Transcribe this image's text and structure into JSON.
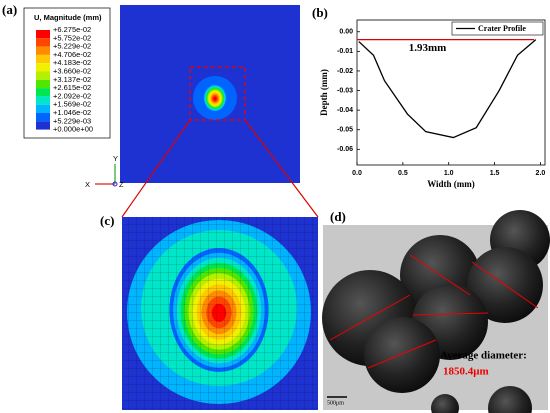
{
  "panels": {
    "a": {
      "label": "(a)",
      "legend_title": "U, Magnitude (mm)",
      "legend_values": [
        "+6.275e-02",
        "+5.752e-02",
        "+5.229e-02",
        "+4.706e-02",
        "+4.183e-02",
        "+3.660e-02",
        "+3.137e-02",
        "+2.615e-02",
        "+2.092e-02",
        "+1.569e-02",
        "+1.046e-02",
        "+5.229e-03",
        "+0.000e+00"
      ],
      "colors": [
        "#ff0000",
        "#ff4600",
        "#ff8c00",
        "#ffc800",
        "#f0f000",
        "#b4f000",
        "#50e600",
        "#00e650",
        "#00e6c8",
        "#00b4ff",
        "#0064ff",
        "#1e32d2"
      ],
      "axes": {
        "y": "Y",
        "x": "X",
        "z": "Z"
      }
    },
    "c": {
      "label": "(c)"
    },
    "d": {
      "label": "(d)",
      "annotation": "Average diameter:",
      "value": "1850.4μm",
      "scale_bar": "500μm"
    }
  },
  "chart_data": {
    "type": "line",
    "label": "(b)",
    "xlabel": "Width (mm)",
    "ylabel": "Depth (mm)",
    "x": [
      0.02,
      0.18,
      0.3,
      0.55,
      0.75,
      1.05,
      1.3,
      1.55,
      1.75,
      1.95
    ],
    "series": [
      {
        "name": "Crater Profile",
        "color": "#000000",
        "values": [
          -0.005,
          -0.012,
          -0.025,
          -0.042,
          -0.051,
          -0.054,
          -0.049,
          -0.03,
          -0.012,
          -0.004
        ]
      }
    ],
    "xlim": [
      0,
      2.05
    ],
    "ylim": [
      -0.068,
      0.006
    ],
    "xticks": [
      {
        "value": 0,
        "label": "0.0"
      },
      {
        "value": 0.5,
        "label": "0.5"
      },
      {
        "value": 1,
        "label": "1.0"
      },
      {
        "value": 1.5,
        "label": "1.5"
      },
      {
        "value": 2,
        "label": "2.0"
      }
    ],
    "yticks": [
      {
        "value": 0,
        "label": "0.00"
      },
      {
        "value": -0.01,
        "label": "-0.01"
      },
      {
        "value": -0.02,
        "label": "-0.02"
      },
      {
        "value": -0.03,
        "label": "-0.03"
      },
      {
        "value": -0.04,
        "label": "-0.04"
      },
      {
        "value": -0.05,
        "label": "-0.05"
      },
      {
        "value": -0.06,
        "label": "-0.06"
      }
    ],
    "span": {
      "x": [
        0,
        1.93
      ],
      "y": -0.004,
      "color": "#e00000",
      "label": "1.93mm"
    },
    "legend": "upper right"
  }
}
